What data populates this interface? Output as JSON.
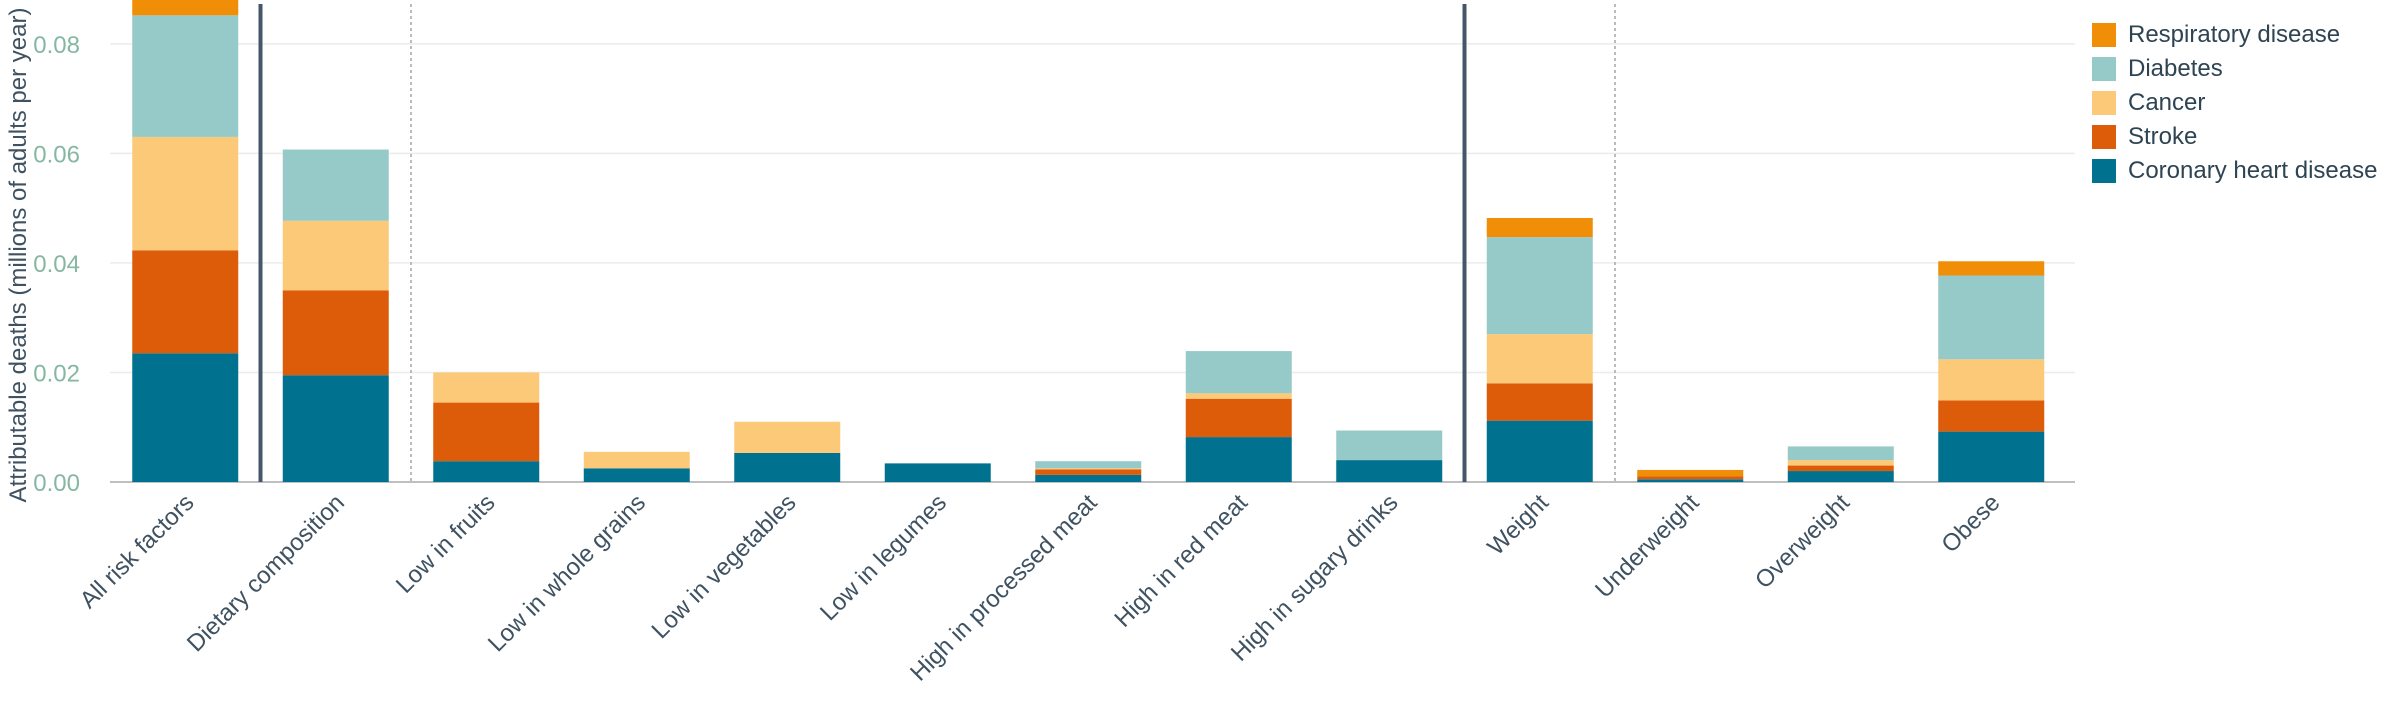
{
  "chart_data": {
    "type": "bar",
    "stacked": true,
    "ylabel": "Attributable deaths (millions of adults per year)",
    "ylim": [
      0,
      0.088
    ],
    "yticks": [
      0.0,
      0.02,
      0.04,
      0.06,
      0.08
    ],
    "ytick_labels": [
      "0.00",
      "0.02",
      "0.04",
      "0.06",
      "0.08"
    ],
    "grid": "horizontal",
    "legend_position": "top-right",
    "categories": [
      "All risk factors",
      "Dietary composition",
      "Low in fruits",
      "Low in whole grains",
      "Low in vegetables",
      "Low in legumes",
      "High in processed meat",
      "High in red meat",
      "High in sugary drinks",
      "Weight",
      "Underweight",
      "Overweight",
      "Obese"
    ],
    "group_separators": [
      {
        "after_index": 0,
        "style": "solid"
      },
      {
        "after_index": 1,
        "style": "dotted"
      },
      {
        "after_index": 8,
        "style": "solid"
      },
      {
        "after_index": 9,
        "style": "dotted"
      }
    ],
    "series": [
      {
        "name": "Coronary heart disease",
        "color": "#00728f",
        "values": [
          0.0235,
          0.0195,
          0.0038,
          0.0025,
          0.0053,
          0.0034,
          0.0013,
          0.0082,
          0.004,
          0.0112,
          0.0005,
          0.002,
          0.0092
        ]
      },
      {
        "name": "Stroke",
        "color": "#dd5c0a",
        "values": [
          0.0188,
          0.0155,
          0.0107,
          0.0,
          0.0,
          0.0,
          0.001,
          0.007,
          0.0,
          0.0068,
          0.0005,
          0.001,
          0.0057
        ]
      },
      {
        "name": "Cancer",
        "color": "#fcc979",
        "values": [
          0.0207,
          0.0127,
          0.0055,
          0.003,
          0.0057,
          0.0,
          0.0002,
          0.001,
          0.0,
          0.009,
          0.0,
          0.001,
          0.0075
        ]
      },
      {
        "name": "Diabetes",
        "color": "#96cac9",
        "values": [
          0.0222,
          0.013,
          0.0,
          0.0,
          0.0,
          0.0,
          0.0013,
          0.0077,
          0.0054,
          0.0177,
          0.0,
          0.0025,
          0.0153
        ]
      },
      {
        "name": "Respiratory disease",
        "color": "#f18e07",
        "values": [
          0.0038,
          0.0,
          0.0,
          0.0,
          0.0,
          0.0,
          0.0,
          0.0,
          0.0,
          0.0035,
          0.0012,
          0.0,
          0.0026
        ]
      }
    ],
    "legend_order": [
      "Respiratory disease",
      "Diabetes",
      "Cancer",
      "Stroke",
      "Coronary heart disease"
    ]
  }
}
